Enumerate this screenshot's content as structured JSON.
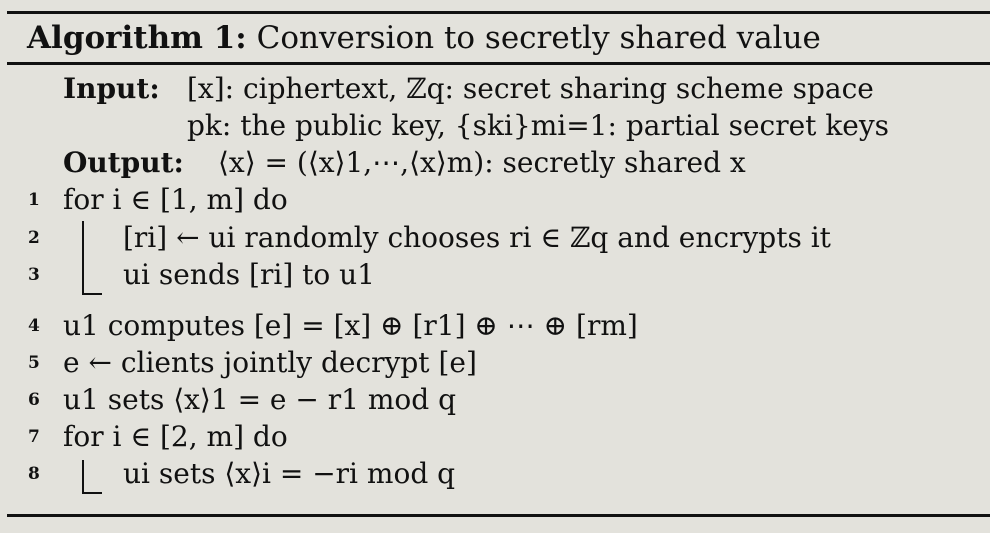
{
  "algorithm": {
    "label": "Algorithm 1:",
    "title": "Conversion to secretly shared value"
  },
  "input": {
    "label": "Input:",
    "line1": "[x]: ciphertext, ℤq: secret sharing scheme space",
    "line2": "pk: the public key, {ski}mi=1: partial secret keys"
  },
  "output": {
    "label": "Output:",
    "text": "⟨x⟩ = (⟨x⟩1,⋯,⟨x⟩m): secretly shared x"
  },
  "steps": [
    {
      "num": "1",
      "text": "for i ∈ [1, m] do"
    },
    {
      "num": "2",
      "text": "[ri] ← ui randomly chooses ri ∈ ℤq and encrypts it"
    },
    {
      "num": "3",
      "text": "ui sends [ri] to u1"
    },
    {
      "num": "4",
      "text": "u1 computes [e] = [x] ⊕ [r1] ⊕ ⋯ ⊕ [rm]"
    },
    {
      "num": "5",
      "text": "e ← clients jointly decrypt [e]"
    },
    {
      "num": "6",
      "text": "u1 sets ⟨x⟩1 = e − r1  mod q"
    },
    {
      "num": "7",
      "text": "for i ∈ [2, m] do"
    },
    {
      "num": "8",
      "text": "ui sets ⟨x⟩i = −ri  mod q"
    }
  ]
}
